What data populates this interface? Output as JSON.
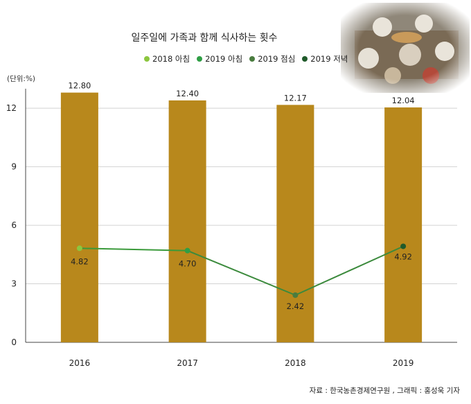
{
  "title": "일주일에 가족과 함께 식사하는 횟수",
  "unit_label": "(단위:%)",
  "source": "자료 : 한국농촌경제연구원 , 그래픽 : 홍성욱 기자",
  "colors": {
    "bar": "#b8881c",
    "grid": "#d2d2d2",
    "axis": "#444444",
    "line_2019_morning": "#3a9a3a"
  },
  "legend": [
    {
      "label": "2018 아침",
      "color": "#8cc63f"
    },
    {
      "label": "2019 아침",
      "color": "#2f9e45"
    },
    {
      "label": "2019 점심",
      "color": "#4a7c3f"
    },
    {
      "label": "2019 저녁",
      "color": "#1f5a2a"
    }
  ],
  "chart_data": {
    "type": "bar",
    "categories": [
      "2016",
      "2017",
      "2018",
      "2019"
    ],
    "values": [
      12.8,
      12.4,
      12.17,
      12.04
    ],
    "value_labels": [
      "12.80",
      "12.40",
      "12.17",
      "12.04"
    ],
    "ylim": [
      0,
      13
    ],
    "yticks": [
      0,
      3,
      6,
      9,
      12
    ],
    "grid": true,
    "legend_position": "top",
    "points": [
      {
        "series": "2018 아침",
        "x_pos": 0.5,
        "value": 4.82,
        "label": "4.82",
        "color": "#8cc63f"
      },
      {
        "series": "2019 아침",
        "x_pos": 1.5,
        "value": 4.7,
        "label": "4.70",
        "color": "#2f9e45"
      },
      {
        "series": "2019 점심",
        "x_pos": 2.5,
        "value": 2.42,
        "label": "2.42",
        "color": "#4a7c3f"
      },
      {
        "series": "2019 저녁",
        "x_pos": 3.5,
        "value": 4.92,
        "label": "4.92",
        "color": "#1f5a2a"
      }
    ]
  }
}
